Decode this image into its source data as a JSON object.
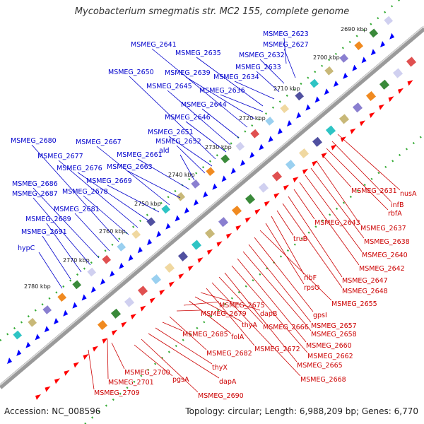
{
  "title": "Mycobacterium smegmatis str. MC2 155, complete genome",
  "footer": {
    "accession": "Accession: NC_008596",
    "summary": "Topology: circular; Length: 6,988,209 bp; Genes: 6,770"
  },
  "colors": {
    "forward_gene": "#0000ff",
    "reverse_gene": "#ff0000",
    "forward_label": "#0000cc",
    "reverse_label": "#cc0000",
    "backbone": "#808080",
    "tick_dots": "#33aa33"
  },
  "kbp_ticks": [
    "2690 kbp",
    "2700 kbp",
    "2710 kbp",
    "2720 kbp",
    "2730 kbp",
    "2740 kbp",
    "2750 kbp",
    "2760 kbp",
    "2770 kbp",
    "2780 kbp"
  ],
  "forward_genes": [
    "MSMEG_2623",
    "MSMEG_2627",
    "MSMEG_2632",
    "MSMEG_2633",
    "MSMEG_2634",
    "MSMEG_2635",
    "MSMEG_2636",
    "MSMEG_2639",
    "MSMEG_2641",
    "MSMEG_2644",
    "MSMEG_2645",
    "MSMEG_2646",
    "MSMEG_2650",
    "MSMEG_2651",
    "MSMEG_2652",
    "ald",
    "MSMEG_2661",
    "MSMEG_2663",
    "MSMEG_2667",
    "MSMEG_2669",
    "MSMEG_2676",
    "MSMEG_2677",
    "MSMEG_2678",
    "MSMEG_2680",
    "MSMEG_2681",
    "MSMEG_2686",
    "MSMEG_2687",
    "MSMEG_2689",
    "MSMEG_2691",
    "hypC"
  ],
  "reverse_genes": [
    "nusA",
    "infB",
    "rbfA",
    "MSMEG_2631",
    "MSMEG_2637",
    "MSMEG_2638",
    "MSMEG_2640",
    "MSMEG_2642",
    "MSMEG_2643",
    "MSMEG_2647",
    "MSMEG_2648",
    "truB",
    "ribF",
    "rpsO",
    "MSMEG_2655",
    "gpsI",
    "MSMEG_2657",
    "MSMEG_2658",
    "MSMEG_2660",
    "MSMEG_2662",
    "MSMEG_2665",
    "MSMEG_2666",
    "MSMEG_2668",
    "MSMEG_2672",
    "dapB",
    "thyA",
    "folA",
    "MSMEG_2675",
    "MSMEG_2679",
    "MSMEG_2682",
    "MSMEG_2685",
    "thyX",
    "dapA",
    "MSMEG_2690",
    "pgsA",
    "MSMEG_2700",
    "MSMEG_2701",
    "MSMEG_2709"
  ]
}
